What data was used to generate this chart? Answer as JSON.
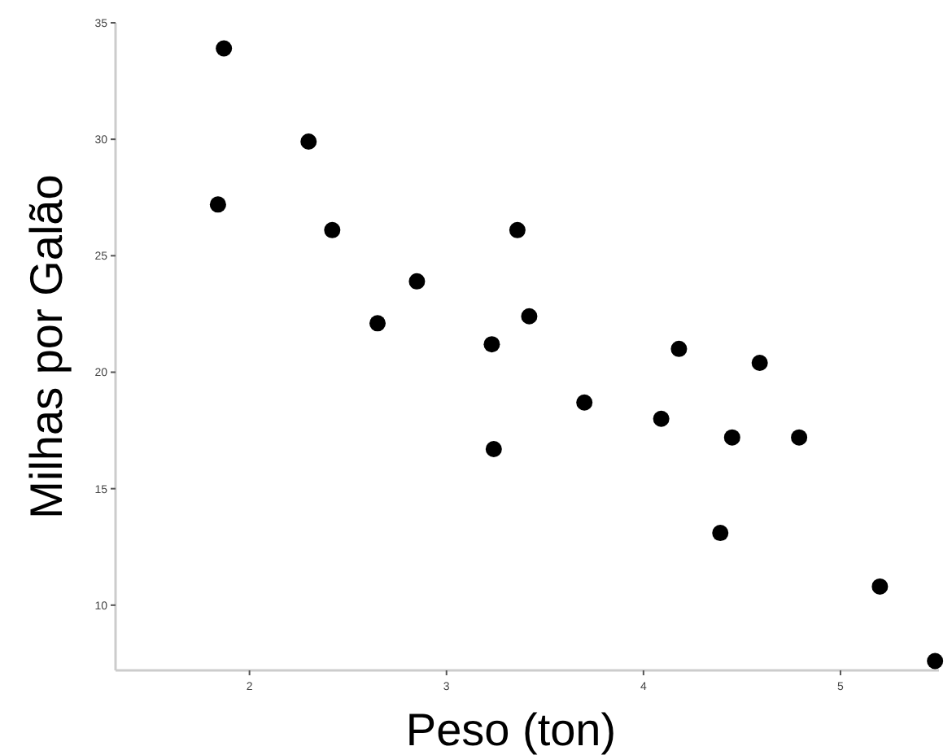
{
  "chart_data": {
    "type": "scatter",
    "xlabel": "Peso (ton)",
    "ylabel": "Milhas por Galão",
    "xlim": [
      1.32,
      5.5
    ],
    "xticks": [
      2,
      3,
      4,
      5
    ],
    "ylim": [
      7.2,
      35
    ],
    "yticks": [
      10,
      15,
      20,
      25,
      30,
      35
    ],
    "marker": "circle",
    "series": [
      {
        "color": "#000000",
        "x": [
          1.87,
          1.84,
          2.3,
          2.42,
          2.65,
          2.85,
          3.23,
          3.24,
          3.36,
          3.42,
          3.7,
          4.09,
          4.18,
          4.59,
          4.45,
          4.79,
          4.39,
          5.2,
          5.48
        ],
        "values": [
          33.9,
          27.2,
          29.9,
          26.1,
          22.1,
          23.9,
          21.2,
          16.7,
          26.1,
          22.4,
          18.7,
          18.0,
          21.0,
          20.4,
          17.2,
          17.2,
          13.1,
          10.8,
          7.6
        ]
      }
    ]
  }
}
